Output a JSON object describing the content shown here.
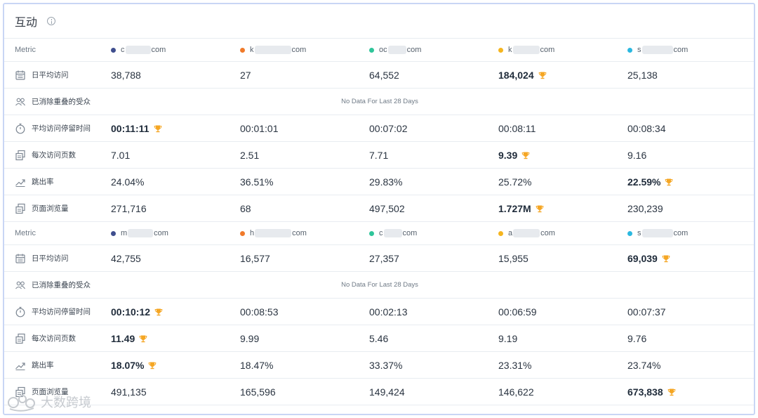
{
  "card": {
    "title": "互动"
  },
  "sections": [
    {
      "metric_header": "Metric",
      "sites": [
        {
          "pre": "c",
          "post": "com",
          "color": "#3f4e8e"
        },
        {
          "pre": "k",
          "post": "com",
          "color": "#f07a2a"
        },
        {
          "pre": "oc",
          "post": "com",
          "color": "#2fc59a"
        },
        {
          "pre": "k",
          "post": "com",
          "color": "#f5b51f"
        },
        {
          "pre": "s",
          "post": "com",
          "color": "#2bb8e0"
        }
      ],
      "rows": [
        {
          "icon": "calendar-icon",
          "label": "日平均访问",
          "values": [
            "38,788",
            "27",
            "64,552",
            "184,024",
            "25,138"
          ],
          "winner": 3
        },
        {
          "icon": "people-icon",
          "label": "已消除重叠的受众",
          "nodata": "No Data For Last 28 Days"
        },
        {
          "icon": "stopwatch-icon",
          "label": "平均访问停留时间",
          "values": [
            "00:11:11",
            "00:01:01",
            "00:07:02",
            "00:08:11",
            "00:08:34"
          ],
          "winner": 0
        },
        {
          "icon": "pages-icon",
          "label": "每次访问页数",
          "values": [
            "7.01",
            "2.51",
            "7.71",
            "9.39",
            "9.16"
          ],
          "winner": 3
        },
        {
          "icon": "trend-icon",
          "label": "跳出率",
          "values": [
            "24.04%",
            "36.51%",
            "29.83%",
            "25.72%",
            "22.59%"
          ],
          "winner": 4
        },
        {
          "icon": "pages-icon",
          "label": "页面浏览量",
          "values": [
            "271,716",
            "68",
            "497,502",
            "1.727M",
            "230,239"
          ],
          "winner": 3
        }
      ]
    },
    {
      "metric_header": "Metric",
      "sites": [
        {
          "pre": "m",
          "post": "com",
          "color": "#3f4e8e"
        },
        {
          "pre": "h",
          "post": "com",
          "color": "#f07a2a"
        },
        {
          "pre": "c",
          "post": "com",
          "color": "#2fc59a"
        },
        {
          "pre": "a",
          "post": "com",
          "color": "#f5b51f"
        },
        {
          "pre": "s",
          "post": "com",
          "color": "#2bb8e0"
        }
      ],
      "rows": [
        {
          "icon": "calendar-icon",
          "label": "日平均访问",
          "values": [
            "42,755",
            "16,577",
            "27,357",
            "15,955",
            "69,039"
          ],
          "winner": 4
        },
        {
          "icon": "people-icon",
          "label": "已消除重叠的受众",
          "nodata": "No Data For Last 28 Days"
        },
        {
          "icon": "stopwatch-icon",
          "label": "平均访问停留时间",
          "values": [
            "00:10:12",
            "00:08:53",
            "00:02:13",
            "00:06:59",
            "00:07:37"
          ],
          "winner": 0
        },
        {
          "icon": "pages-icon",
          "label": "每次访问页数",
          "values": [
            "11.49",
            "9.99",
            "5.46",
            "9.19",
            "9.76"
          ],
          "winner": 0
        },
        {
          "icon": "trend-icon",
          "label": "跳出率",
          "values": [
            "18.07%",
            "18.47%",
            "33.37%",
            "23.31%",
            "23.74%"
          ],
          "winner": 0
        },
        {
          "icon": "pages-icon",
          "label": "页面浏览量",
          "values": [
            "491,135",
            "165,596",
            "149,424",
            "146,622",
            "673,838"
          ],
          "winner": 4
        }
      ]
    }
  ],
  "watermark": {
    "text": "大数跨境"
  }
}
